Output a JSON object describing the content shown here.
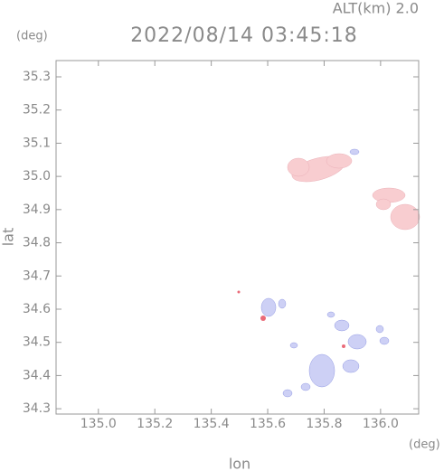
{
  "chart_data": {
    "type": "map",
    "header": "ALT(km) 2.0",
    "title": "2022/08/14 03:45:18",
    "y_unit": "(deg)",
    "x_unit": "(deg)",
    "xlabel": "lon",
    "ylabel": "lat",
    "xlim": [
      134.85,
      136.135
    ],
    "ylim": [
      34.284,
      35.349
    ],
    "xticks": [
      {
        "value": 135.0,
        "label": "135.0"
      },
      135.2,
      135.4,
      135.6,
      135.8,
      {
        "value": 136.0,
        "label": "136.0"
      }
    ],
    "yticks": [
      34.3,
      34.4,
      34.5,
      34.6,
      34.7,
      34.8,
      34.9,
      {
        "value": 35.0,
        "label": "35.0"
      },
      35.1,
      35.2,
      35.3
    ]
  }
}
